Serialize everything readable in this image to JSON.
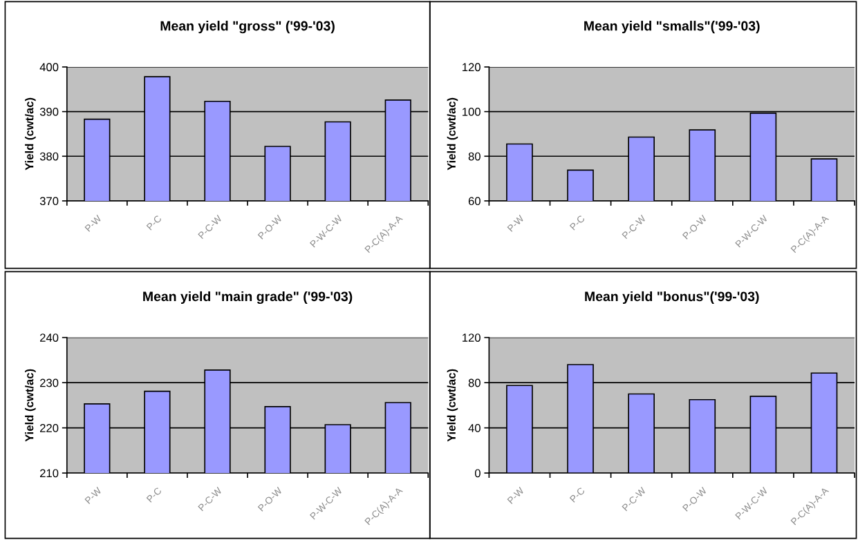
{
  "chart_data": [
    {
      "type": "bar",
      "title": "Mean yield \"gross\" ('99-'03)",
      "ylabel": "Yield (cwt/ac)",
      "categories": [
        "P-W",
        "P-C",
        "P-C-W",
        "P-O-W",
        "P-W-C-W",
        "P-C(A)-A-A"
      ],
      "values": [
        388.3,
        397.8,
        392.3,
        382.2,
        387.7,
        392.6
      ],
      "color": "#9999ff",
      "ylim": [
        370,
        400
      ],
      "yticks": [
        370,
        380,
        390,
        400
      ],
      "grid": "y"
    },
    {
      "type": "bar",
      "title": "Mean yield \"smalls\"('99-'03)",
      "ylabel": "Yield (cwt/ac)",
      "categories": [
        "P-W",
        "P-C",
        "P-C-W",
        "P-O-W",
        "P-W-C-W",
        "P-C(A)-A-A"
      ],
      "values": [
        85.5,
        73.8,
        88.6,
        91.8,
        99.3,
        78.8
      ],
      "color": "#9999ff",
      "ylim": [
        60,
        120
      ],
      "yticks": [
        60,
        80,
        100,
        120
      ],
      "grid": "y"
    },
    {
      "type": "bar",
      "title": "Mean yield \"main grade\" ('99-'03)",
      "ylabel": "Yield (cwt/ac)",
      "categories": [
        "P-W",
        "P-C",
        "P-C-W",
        "P-O-W",
        "P-W-C-W",
        "P-C(A)-A-A"
      ],
      "values": [
        225.3,
        228.1,
        232.8,
        224.7,
        220.7,
        225.6
      ],
      "color": "#9999ff",
      "ylim": [
        210,
        240
      ],
      "yticks": [
        210,
        220,
        230,
        240
      ],
      "grid": "y"
    },
    {
      "type": "bar",
      "title": "Mean yield \"bonus\"('99-'03)",
      "ylabel": "Yield (cwt/ac)",
      "categories": [
        "P-W",
        "P-C",
        "P-C-W",
        "P-O-W",
        "P-W-C-W",
        "P-C(A)-A-A"
      ],
      "values": [
        77.5,
        96,
        70,
        65,
        68,
        88.5
      ],
      "color": "#9999ff",
      "ylim": [
        0,
        120
      ],
      "yticks": [
        0,
        40,
        80,
        120
      ],
      "grid": "y"
    }
  ]
}
